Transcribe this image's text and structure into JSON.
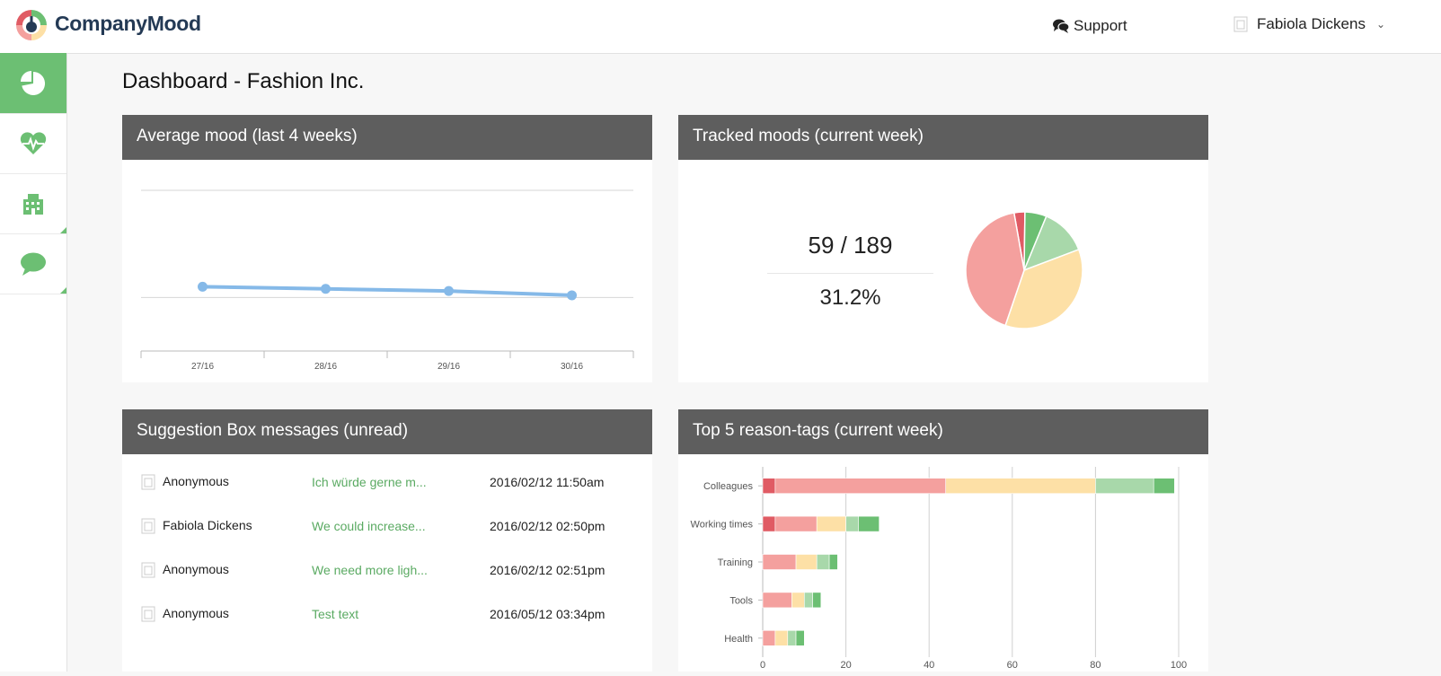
{
  "header": {
    "brand": "CompanyMood",
    "support_label": "Support",
    "user_name": "Fabiola Dickens"
  },
  "sidebar": {
    "items": [
      {
        "icon": "dashboard-pie-icon",
        "active": true
      },
      {
        "icon": "heartbeat-icon",
        "active": false
      },
      {
        "icon": "building-icon",
        "active": false
      },
      {
        "icon": "chat-bubble-icon",
        "active": false
      }
    ]
  },
  "page": {
    "title": "Dashboard - Fashion Inc."
  },
  "cards": {
    "avg_mood": {
      "title": "Average mood (last 4 weeks)"
    },
    "tracked": {
      "title": "Tracked moods (current week)",
      "count": "59",
      "slash": " / ",
      "total": "189",
      "percent": "31.2%"
    },
    "suggestions": {
      "title": "Suggestion Box messages (unread)"
    },
    "tags": {
      "title": "Top 5 reason-tags (current week)"
    }
  },
  "messages": [
    {
      "name": "Anonymous",
      "text": "Ich würde gerne m...",
      "date": "2016/02/12 11:50am"
    },
    {
      "name": "Fabiola Dickens",
      "text": "We could increase...",
      "date": "2016/02/12 02:50pm"
    },
    {
      "name": "Anonymous",
      "text": "We need more ligh...",
      "date": "2016/02/12 02:51pm"
    },
    {
      "name": "Anonymous",
      "text": "Test text",
      "date": "2016/05/12 03:34pm"
    }
  ],
  "colors": {
    "green": "#6cbf73",
    "light_green": "#a8d8aa",
    "yellow": "#fde0a6",
    "pink": "#f4a09e",
    "red": "#e05b64",
    "line_blue": "#85b9e8",
    "header_gray": "#5e5e5e"
  },
  "chart_data": [
    {
      "type": "line",
      "categories": [
        "27/16",
        "28/16",
        "29/16",
        "30/16"
      ],
      "values": [
        0.2,
        0.16,
        0.12,
        0.04
      ],
      "ylim": [
        -1,
        2
      ],
      "grid": true
    },
    {
      "type": "pie",
      "labels": [
        "red",
        "green",
        "light green",
        "yellow",
        "pink"
      ],
      "values": [
        3,
        6,
        13,
        36,
        42
      ],
      "colors": [
        "#e05b64",
        "#6cbf73",
        "#a8d8aa",
        "#fde0a6",
        "#f4a09e"
      ]
    },
    {
      "type": "bar",
      "orientation": "horizontal",
      "stacked": true,
      "categories": [
        "Colleagues",
        "Working times",
        "Training",
        "Tools",
        "Health"
      ],
      "series": [
        {
          "color": "#e05b64",
          "values": [
            3,
            3,
            0,
            0,
            0
          ]
        },
        {
          "color": "#f4a09e",
          "values": [
            41,
            10,
            8,
            7,
            3
          ]
        },
        {
          "color": "#fde0a6",
          "values": [
            36,
            7,
            5,
            3,
            3
          ]
        },
        {
          "color": "#a8d8aa",
          "values": [
            14,
            3,
            3,
            2,
            2
          ]
        },
        {
          "color": "#6cbf73",
          "values": [
            5,
            5,
            2,
            2,
            2
          ]
        }
      ],
      "xticks": [
        0,
        20,
        40,
        60,
        80,
        100
      ],
      "xlim": [
        0,
        100
      ],
      "grid": true
    }
  ]
}
